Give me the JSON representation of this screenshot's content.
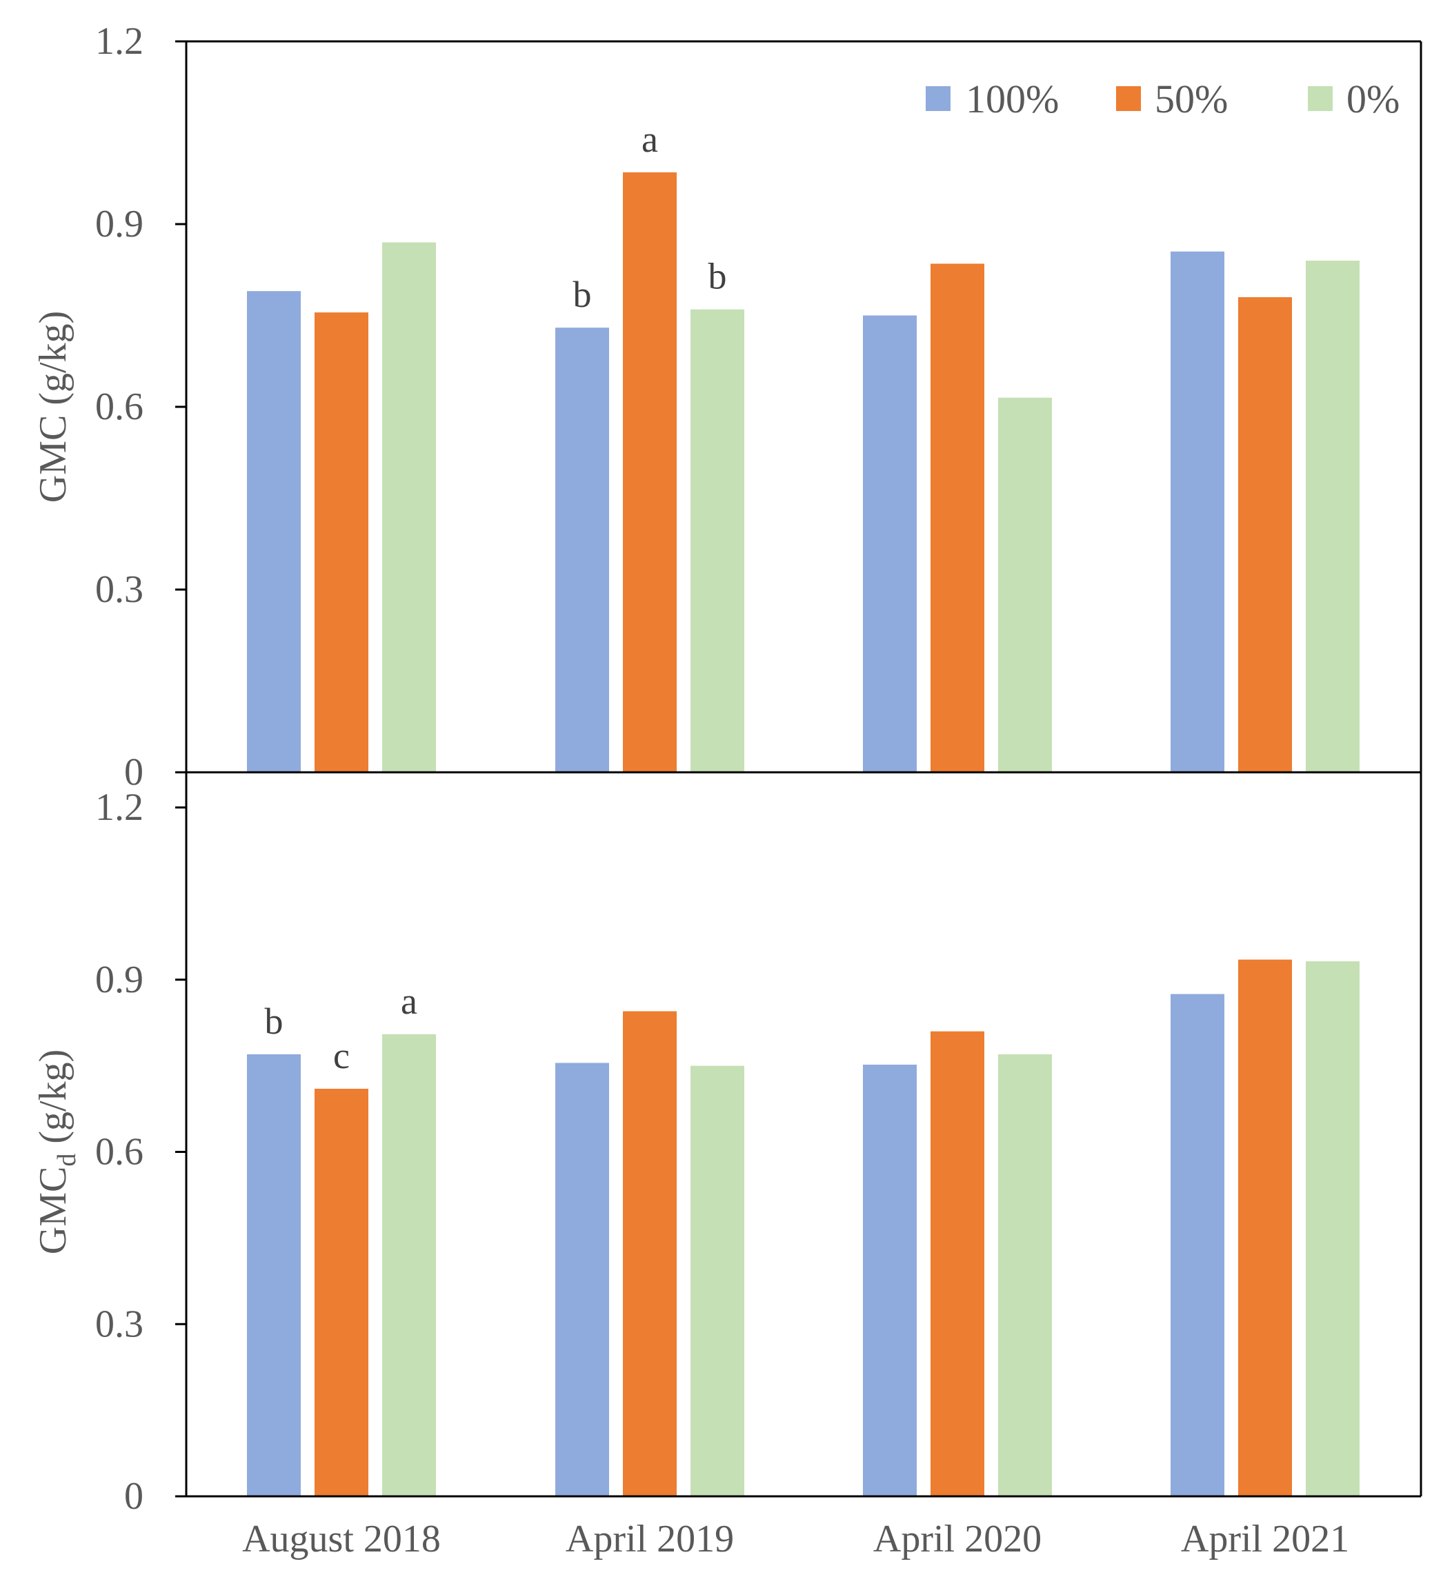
{
  "colors": {
    "s100": "#8FAADC",
    "s50": "#ED7D31",
    "s0": "#C5E0B4",
    "axis": "#000000",
    "text": "#595959"
  },
  "chart_data": [
    {
      "type": "bar",
      "panel": "top",
      "ylabel": "GMC (g/kg)",
      "ylim": [
        0,
        1.2
      ],
      "yticks": [
        "0",
        "0.3",
        "0.6",
        "0.9",
        "1.2"
      ],
      "categories": [
        "August 2018",
        "April 2019",
        "April 2020",
        "April 2021"
      ],
      "series": [
        {
          "name": "100%",
          "colorKey": "s100",
          "values": [
            0.79,
            0.73,
            0.75,
            0.855
          ]
        },
        {
          "name": "50%",
          "colorKey": "s50",
          "values": [
            0.755,
            0.985,
            0.835,
            0.78
          ]
        },
        {
          "name": "0%",
          "colorKey": "s0",
          "values": [
            0.87,
            0.76,
            0.615,
            0.84
          ]
        }
      ],
      "annotations": [
        {
          "category": 1,
          "series": 0,
          "text": "b"
        },
        {
          "category": 1,
          "series": 1,
          "text": "a"
        },
        {
          "category": 1,
          "series": 2,
          "text": "b"
        }
      ],
      "legend": "top-right"
    },
    {
      "type": "bar",
      "panel": "bottom",
      "ylabel_main": "GMC",
      "ylabel_sub": "d",
      "ylabel_unit": " (g/kg)",
      "ylim": [
        0,
        1.2
      ],
      "yticks": [
        "0",
        "0.3",
        "0.6",
        "0.9",
        "1.2"
      ],
      "categories": [
        "August 2018",
        "April 2019",
        "April 2020",
        "April 2021"
      ],
      "series": [
        {
          "name": "100%",
          "colorKey": "s100",
          "values": [
            0.77,
            0.755,
            0.752,
            0.875
          ]
        },
        {
          "name": "50%",
          "colorKey": "s50",
          "values": [
            0.71,
            0.845,
            0.81,
            0.935
          ]
        },
        {
          "name": "0%",
          "colorKey": "s0",
          "values": [
            0.805,
            0.75,
            0.77,
            0.932
          ]
        }
      ],
      "annotations": [
        {
          "category": 0,
          "series": 0,
          "text": "b"
        },
        {
          "category": 0,
          "series": 1,
          "text": "c"
        },
        {
          "category": 0,
          "series": 2,
          "text": "a"
        }
      ]
    }
  ]
}
